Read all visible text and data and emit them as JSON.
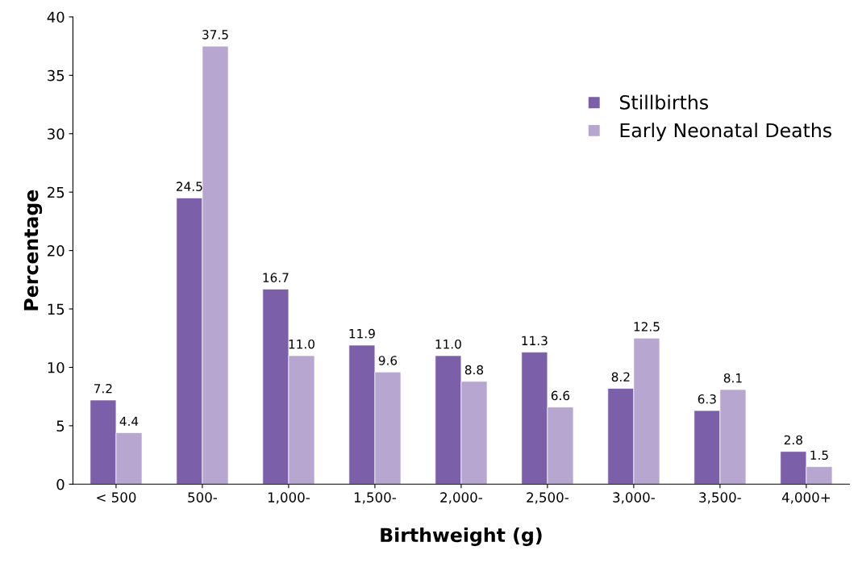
{
  "chart_data": {
    "type": "bar",
    "xlabel": "Birthweight (g)",
    "ylabel": "Percentage",
    "categories": [
      "< 500",
      "500-",
      "1,000-",
      "1,500-",
      "2,000-",
      "2,500-",
      "3,000-",
      "3,500-",
      "4,000+"
    ],
    "series": [
      {
        "name": "Stillbirths",
        "color": "#7b5fa8",
        "values": [
          7.2,
          24.5,
          16.7,
          11.9,
          11.0,
          11.3,
          8.2,
          6.3,
          2.8
        ],
        "value_labels": [
          "7.2",
          "24.5",
          "16.7",
          "11.9",
          "11.0",
          "11.3",
          "8.2",
          "6.3",
          "2.8"
        ]
      },
      {
        "name": "Early Neonatal Deaths",
        "color": "#b6a6d0",
        "values": [
          4.4,
          37.5,
          11.0,
          9.6,
          8.8,
          6.6,
          12.5,
          8.1,
          1.5
        ],
        "value_labels": [
          "4.4",
          "37.5",
          "11.0",
          "9.6",
          "8.8",
          "6.6",
          "12.5",
          "8.1",
          "1.5"
        ]
      }
    ],
    "ylim": [
      0,
      40
    ],
    "yticks": [
      0,
      5,
      10,
      15,
      20,
      25,
      30,
      35,
      40
    ],
    "grid": false,
    "legend": "top right"
  }
}
